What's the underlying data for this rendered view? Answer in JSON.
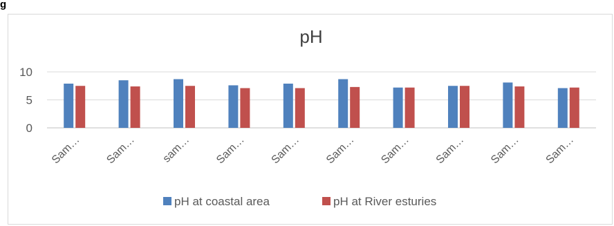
{
  "corner_text": "g",
  "chart_data": {
    "type": "bar",
    "title": "pH",
    "xlabel": "",
    "ylabel": "",
    "ylim": [
      0,
      10
    ],
    "yticks": [
      0,
      5,
      10
    ],
    "grid": true,
    "legend_position": "bottom",
    "categories": [
      "Sam…",
      "Sam…",
      "sam…",
      "Sam…",
      "Sam…",
      "Sam…",
      "Sam…",
      "Sam…",
      "Sam…",
      "Sam…"
    ],
    "series": [
      {
        "name": "pH at coastal area",
        "color": "#4f81bd",
        "values": [
          7.9,
          8.5,
          8.7,
          7.6,
          7.9,
          8.7,
          7.2,
          7.5,
          8.1,
          7.1
        ]
      },
      {
        "name": "pH at River esturies",
        "color": "#c0504d",
        "values": [
          7.5,
          7.4,
          7.5,
          7.1,
          7.1,
          7.3,
          7.2,
          7.5,
          7.4,
          7.2
        ]
      }
    ]
  }
}
